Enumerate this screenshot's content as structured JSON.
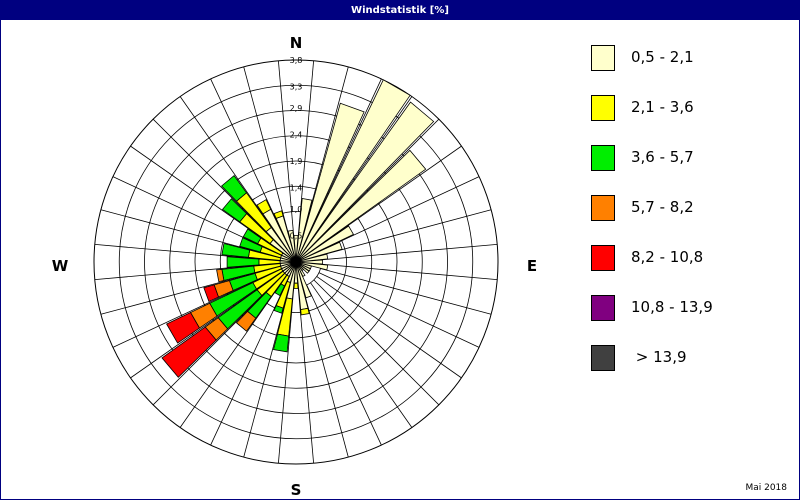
{
  "window": {
    "title": "Windstatistik [%]",
    "footer": "Mai 2018"
  },
  "chart_data": {
    "type": "windrose",
    "title": "Windstatistik [%]",
    "unit": "%",
    "directions": 36,
    "rmax": 3.8,
    "radial_ticks": [
      0.5,
      1.0,
      1.4,
      1.9,
      2.4,
      2.9,
      3.3,
      3.8
    ],
    "radial_tick_labels": [
      "0,5",
      "1,0",
      "1,4",
      "1,9",
      "2,4",
      "2,9",
      "3,3",
      "3,8"
    ],
    "compass": {
      "N": "N",
      "E": "E",
      "S": "S",
      "W": "W"
    },
    "speed_classes": [
      {
        "label": "0,5 - 2,1",
        "color": "#ffffcc"
      },
      {
        "label": "2,1 - 3,6",
        "color": "#ffff00"
      },
      {
        "label": "3,6 - 5,7",
        "color": "#00ee00"
      },
      {
        "label": "5,7 - 8,2",
        "color": "#ff8000"
      },
      {
        "label": "8,2 - 10,8",
        "color": "#ff0000"
      },
      {
        "label": "10,8 - 13,9",
        "color": "#800080"
      },
      {
        "label": " > 13,9",
        "color": "#404040"
      }
    ],
    "sectors": [
      {
        "direction": 0,
        "values": [
          0.5,
          0,
          0,
          0,
          0,
          0,
          0
        ]
      },
      {
        "direction": 10,
        "values": [
          1.2,
          0,
          0,
          0,
          0,
          0,
          0
        ]
      },
      {
        "direction": 20,
        "values": [
          3.1,
          0,
          0,
          0,
          0,
          0,
          0
        ]
      },
      {
        "direction": 30,
        "values": [
          3.8,
          0,
          0,
          0,
          0,
          0,
          0
        ]
      },
      {
        "direction": 40,
        "values": [
          3.7,
          0,
          0,
          0,
          0,
          0,
          0
        ]
      },
      {
        "direction": 50,
        "values": [
          3.0,
          0,
          0,
          0,
          0,
          0,
          0
        ]
      },
      {
        "direction": 60,
        "values": [
          1.2,
          0,
          0,
          0,
          0,
          0,
          0
        ]
      },
      {
        "direction": 70,
        "values": [
          0.9,
          0,
          0,
          0,
          0,
          0,
          0
        ]
      },
      {
        "direction": 80,
        "values": [
          0.6,
          0,
          0,
          0,
          0,
          0,
          0
        ]
      },
      {
        "direction": 90,
        "values": [
          0.5,
          0,
          0,
          0,
          0,
          0,
          0
        ]
      },
      {
        "direction": 100,
        "values": [
          0.6,
          0,
          0,
          0,
          0,
          0,
          0
        ]
      },
      {
        "direction": 110,
        "values": [
          0.3,
          0,
          0,
          0,
          0,
          0,
          0
        ]
      },
      {
        "direction": 120,
        "values": [
          0.3,
          0,
          0,
          0,
          0,
          0,
          0
        ]
      },
      {
        "direction": 130,
        "values": [
          0.3,
          0,
          0,
          0,
          0,
          0,
          0
        ]
      },
      {
        "direction": 140,
        "values": [
          0.2,
          0,
          0,
          0,
          0,
          0,
          0
        ]
      },
      {
        "direction": 150,
        "values": [
          0.3,
          0,
          0,
          0,
          0,
          0,
          0
        ]
      },
      {
        "direction": 160,
        "values": [
          0.7,
          0,
          0,
          0,
          0,
          0,
          0
        ]
      },
      {
        "direction": 170,
        "values": [
          0.9,
          0.1,
          0,
          0,
          0,
          0,
          0
        ]
      },
      {
        "direction": 180,
        "values": [
          0.4,
          0.1,
          0,
          0,
          0,
          0,
          0
        ]
      },
      {
        "direction": 190,
        "values": [
          0.7,
          0.7,
          0.3,
          0,
          0,
          0,
          0
        ]
      },
      {
        "direction": 200,
        "values": [
          0.4,
          0.5,
          0.1,
          0,
          0,
          0,
          0
        ]
      },
      {
        "direction": 210,
        "values": [
          0.3,
          0.2,
          0.2,
          0,
          0,
          0,
          0
        ]
      },
      {
        "direction": 220,
        "values": [
          0.3,
          0.5,
          0.5,
          0.3,
          0,
          0,
          0
        ]
      },
      {
        "direction": 230,
        "values": [
          0.3,
          0.6,
          0.9,
          0.3,
          1.0,
          0,
          0
        ]
      },
      {
        "direction": 240,
        "values": [
          0.3,
          0.6,
          0.9,
          0.4,
          0.5,
          0,
          0
        ]
      },
      {
        "direction": 250,
        "values": [
          0.3,
          0.5,
          0.5,
          0.3,
          0.2,
          0,
          0
        ]
      },
      {
        "direction": 260,
        "values": [
          0.3,
          0.5,
          0.6,
          0.1,
          0,
          0,
          0
        ]
      },
      {
        "direction": 270,
        "values": [
          0.3,
          0.4,
          0.6,
          0,
          0,
          0,
          0
        ]
      },
      {
        "direction": 280,
        "values": [
          0.3,
          0.6,
          0.5,
          0,
          0,
          0,
          0
        ]
      },
      {
        "direction": 290,
        "values": [
          0.3,
          0.4,
          0.4,
          0,
          0,
          0,
          0
        ]
      },
      {
        "direction": 300,
        "values": [
          0.3,
          0.5,
          0.3,
          0,
          0,
          0,
          0
        ]
      },
      {
        "direction": 310,
        "values": [
          0.6,
          0.7,
          0.4,
          0,
          0,
          0,
          0
        ]
      },
      {
        "direction": 320,
        "values": [
          0.8,
          0.8,
          0.4,
          0,
          0,
          0,
          0
        ]
      },
      {
        "direction": 330,
        "values": [
          1.1,
          0.2,
          0,
          0,
          0,
          0,
          0
        ]
      },
      {
        "direction": 340,
        "values": [
          0.9,
          0.1,
          0,
          0,
          0,
          0,
          0
        ]
      },
      {
        "direction": 350,
        "values": [
          0.6,
          0,
          0,
          0,
          0,
          0,
          0
        ]
      }
    ]
  }
}
